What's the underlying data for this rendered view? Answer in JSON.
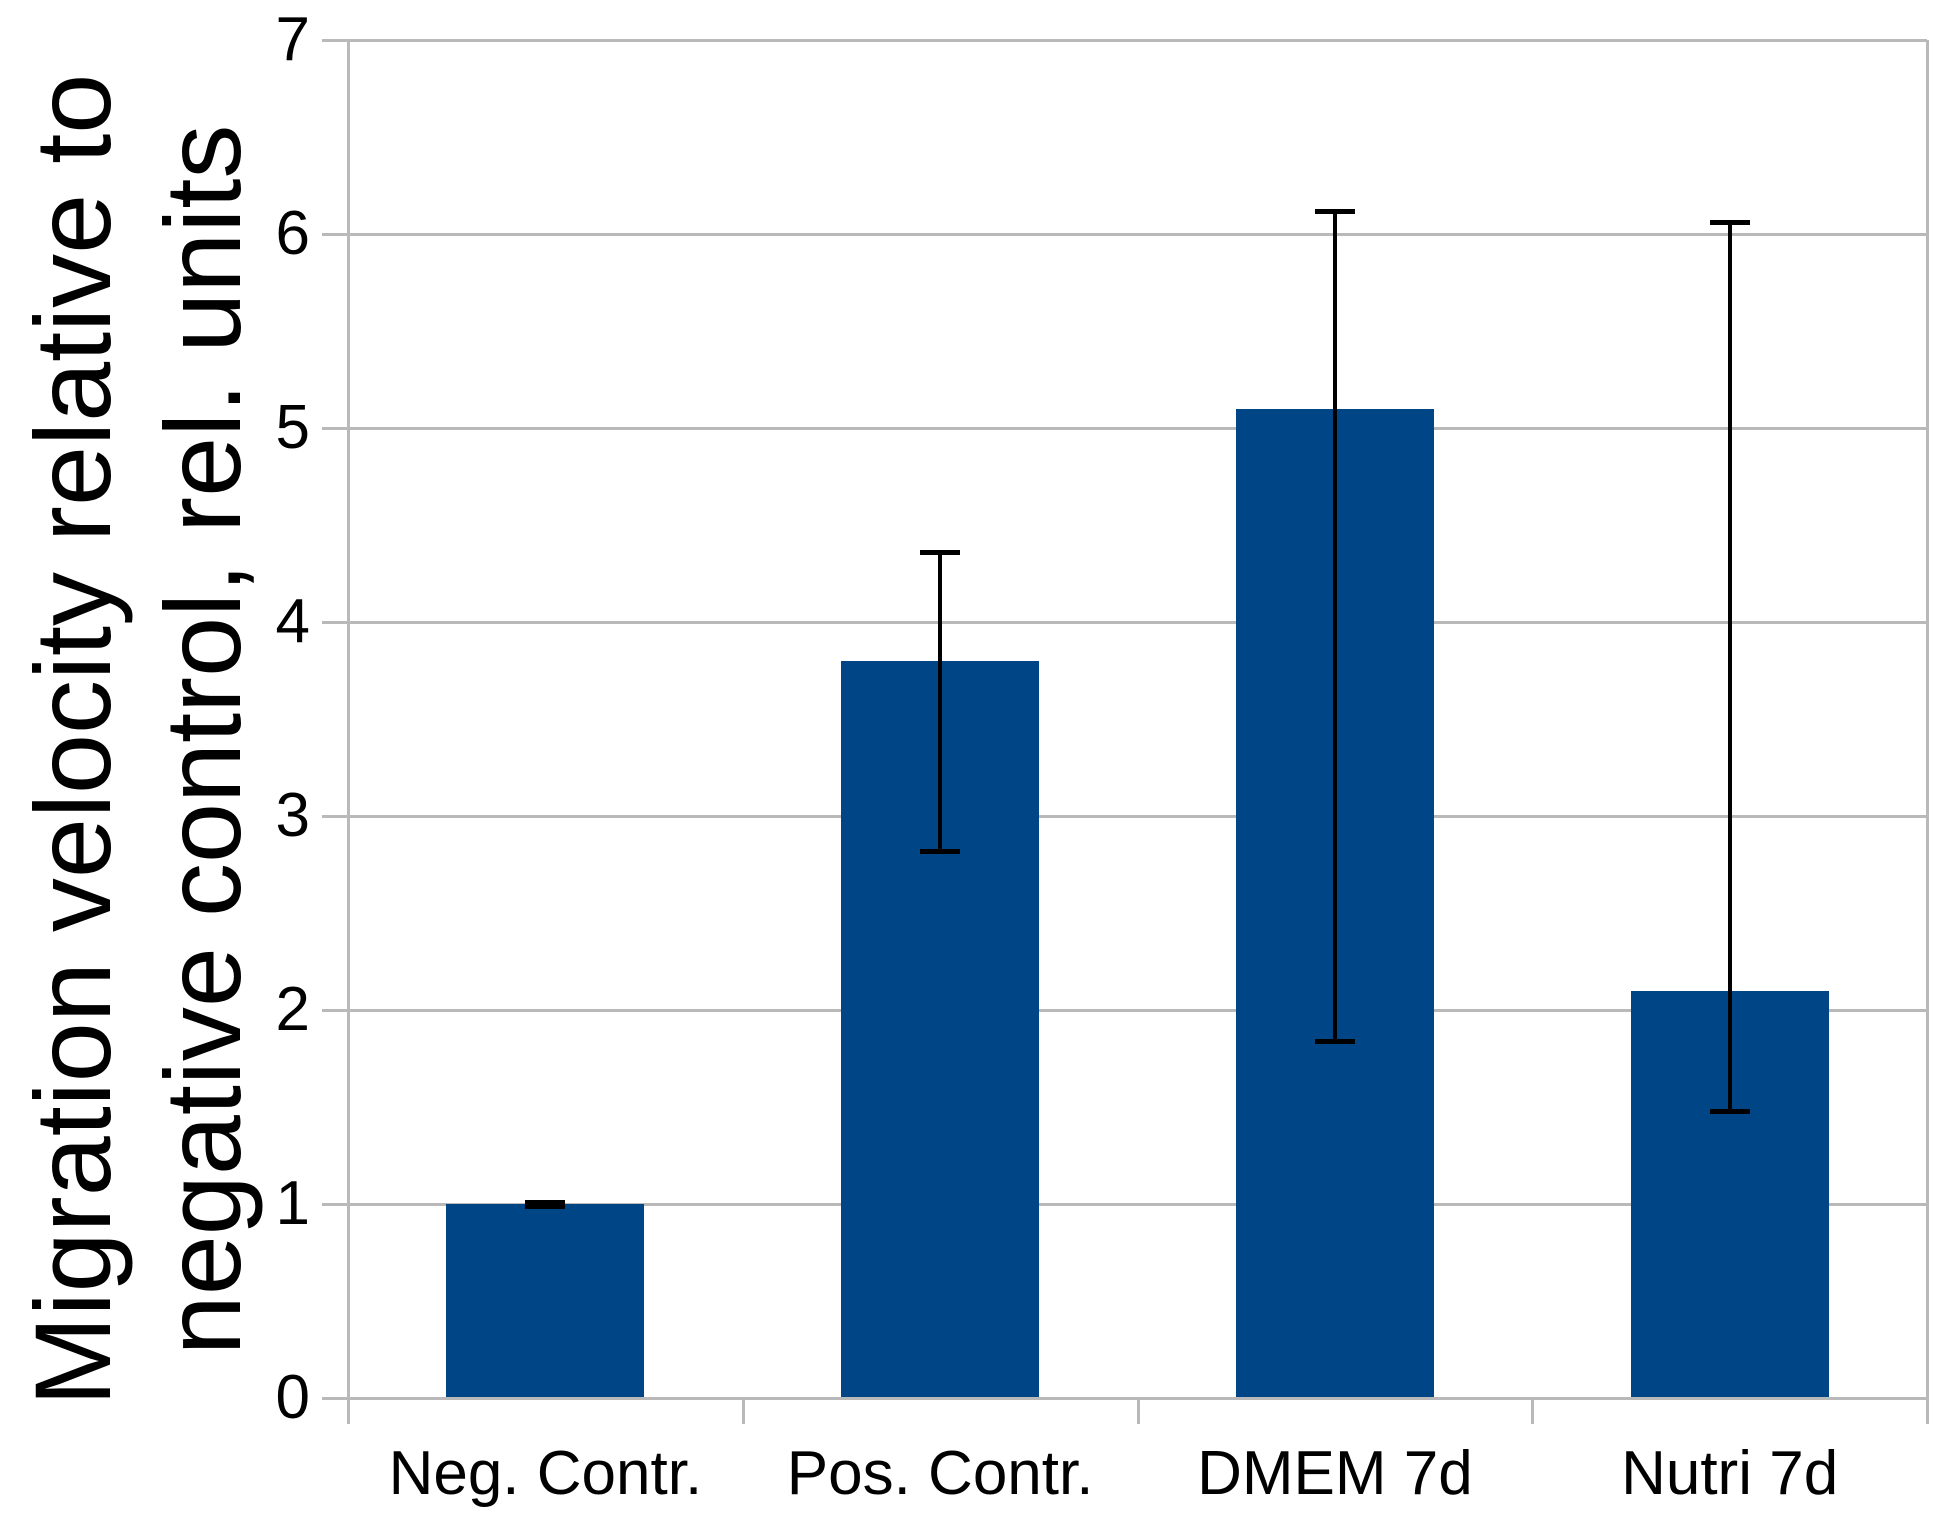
{
  "chart_data": {
    "type": "bar",
    "title": "",
    "categories": [
      "Neg. Contr.",
      "Pos. Contr.",
      "DMEM 7d",
      "Nutri 7d"
    ],
    "values": [
      1.0,
      3.8,
      5.1,
      2.1
    ],
    "error_caps_upper": [
      1.01,
      4.36,
      6.12,
      6.06
    ],
    "error_caps_lower": [
      0.99,
      2.82,
      1.84,
      1.48
    ],
    "ylabel_line1": "Migration velocity relative to",
    "ylabel_line2": "negative control, rel. units",
    "xlabel": "",
    "ylim": [
      0,
      7
    ],
    "yticks": [
      0,
      1,
      2,
      3,
      4,
      5,
      6,
      7
    ],
    "grid": "horizontal",
    "legend": "none",
    "bar_color": "#004586",
    "grid_color": "#b9b9b9",
    "error_color": "#000000",
    "text_color": "#000000",
    "background_color": "#ffffff"
  }
}
